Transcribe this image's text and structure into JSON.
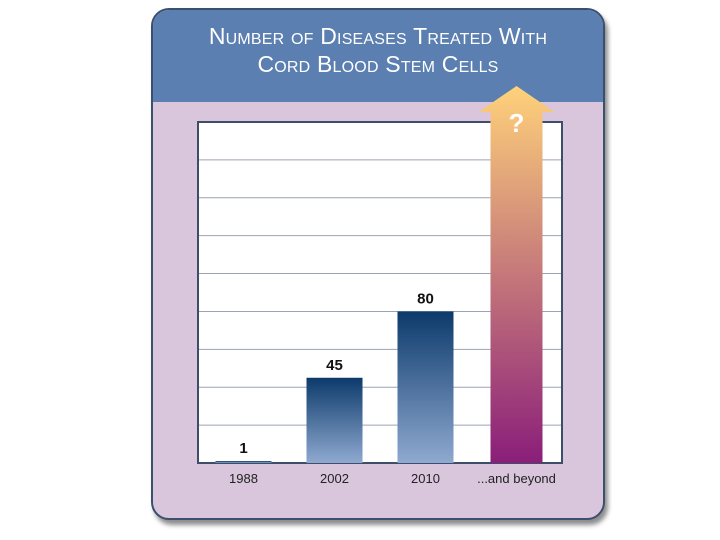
{
  "title_line1": "Number of Diseases Treated With",
  "title_line2": "Cord Blood Stem Cells",
  "colors": {
    "header": "#5a7fb0",
    "panel": "#d9c5dc",
    "bar_dark": "#0c3a6b",
    "bar_light": "#8fa9d0",
    "arrow_top": "#ffd27a",
    "arrow_bottom": "#8a1e7a"
  },
  "chart_data": {
    "type": "bar",
    "categories": [
      "1988",
      "2002",
      "2010",
      "...and beyond"
    ],
    "values": [
      1,
      45,
      80,
      null
    ],
    "value_labels": [
      "1",
      "45",
      "80",
      "?"
    ],
    "xlabel": "",
    "ylabel": "",
    "ylim": [
      0,
      180
    ],
    "grid": true,
    "final_category_style": "upward-arrow"
  }
}
